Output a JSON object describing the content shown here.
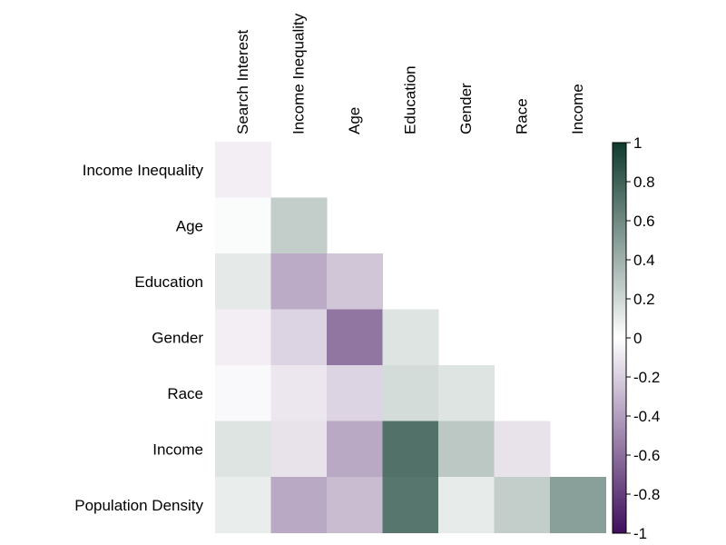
{
  "chart_data": {
    "type": "heatmap",
    "title": "",
    "xlabel": "",
    "ylabel": "",
    "x_categories": [
      "Search Interest",
      "Income Inequality",
      "Age",
      "Education",
      "Gender",
      "Race",
      "Income"
    ],
    "y_categories": [
      "Income Inequality",
      "Age",
      "Education",
      "Gender",
      "Race",
      "Income",
      "Population Density"
    ],
    "values": [
      [
        -0.07,
        null,
        null,
        null,
        null,
        null,
        null
      ],
      [
        0.02,
        0.25,
        null,
        null,
        null,
        null,
        null
      ],
      [
        0.11,
        -0.35,
        -0.24,
        null,
        null,
        null,
        null
      ],
      [
        -0.07,
        -0.18,
        -0.57,
        0.14,
        null,
        null,
        null
      ],
      [
        -0.03,
        -0.1,
        -0.18,
        0.18,
        0.14,
        null,
        null
      ],
      [
        0.14,
        -0.12,
        -0.36,
        0.72,
        0.28,
        -0.12,
        null
      ],
      [
        0.09,
        -0.36,
        -0.28,
        0.7,
        0.1,
        0.25,
        0.49
      ]
    ],
    "mask": "upper-triangle",
    "colorbar": {
      "min": -1,
      "max": 1,
      "ticks": [
        1,
        0.8,
        0.6,
        0.4,
        0.2,
        0,
        -0.2,
        -0.4,
        -0.6,
        -0.8,
        -1
      ],
      "tick_labels": [
        "1",
        "0.8",
        "0.6",
        "0.4",
        "0.2",
        "0",
        "-0.2",
        "-0.4",
        "-0.6",
        "-0.8",
        "-1"
      ],
      "colormap": [
        "#3f0f5c",
        "#ffffff",
        "#0f3b2e"
      ],
      "placement": "right"
    },
    "x_label_rotation": -90
  }
}
